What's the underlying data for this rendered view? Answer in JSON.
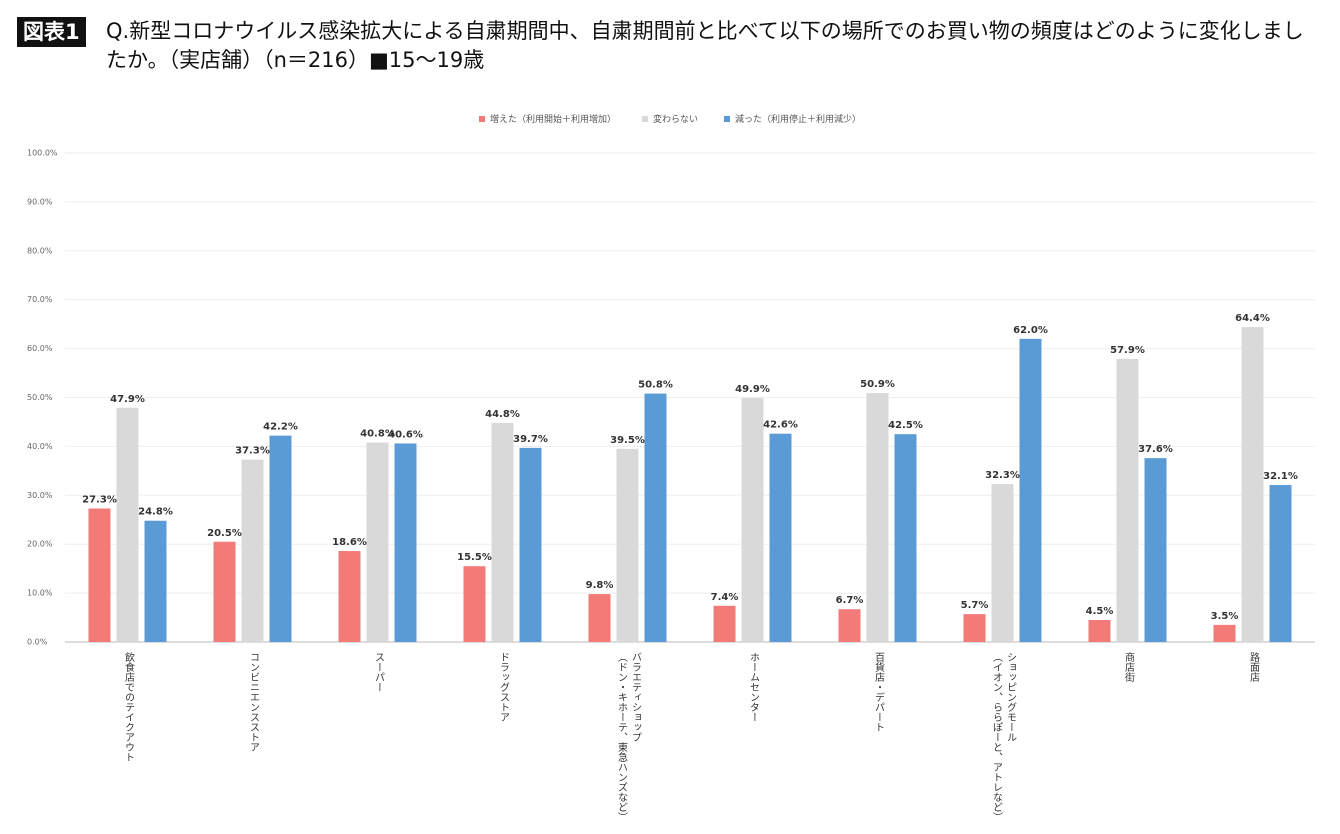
{
  "chart_data": {
    "type": "bar",
    "badge": "図表1",
    "title": "Q.新型コロナウイルス感染拡大による自粛期間中、自粛期間前と比べて以下の場所でのお買い物の頻度はどのように変化しましたか。（実店舗）（n＝216）■15〜19歳",
    "categories": [
      "飲食店でのテイクアウト",
      "コンビニエンスストア",
      "スーパー",
      "ドラッグストア",
      "バラエティショップ\n（ドン・キホーテ、東急ハンズなど）",
      "ホームセンター",
      "百貨店・デパート",
      "ショッピングモール\n（イオン、ららぽーと、アトレなど）",
      "商店街",
      "路面店"
    ],
    "series": [
      {
        "name": "増えた（利用開始＋利用増加）",
        "color": "#f27b78",
        "values": [
          27.3,
          20.5,
          18.6,
          15.5,
          9.8,
          7.4,
          6.7,
          5.7,
          4.5,
          3.5
        ],
        "value_labels": [
          "27.3%",
          "20.5%",
          "18.6%",
          "15.5%",
          "9.8%",
          "7.4%",
          "6.7%",
          "5.7%",
          "4.5%",
          "3.5%"
        ]
      },
      {
        "name": "変わらない",
        "color": "#d9d9d9",
        "values": [
          47.9,
          37.3,
          40.8,
          44.8,
          39.5,
          49.9,
          50.9,
          32.3,
          57.9,
          64.4
        ],
        "value_labels": [
          "47.9%",
          "37.3%",
          "40.8%",
          "44.8%",
          "39.5%",
          "49.9%",
          "50.9%",
          "32.3%",
          "57.9%",
          "64.4%"
        ]
      },
      {
        "name": "減った（利用停止＋利用減少）",
        "color": "#5b9bd5",
        "values": [
          24.8,
          42.2,
          40.6,
          39.7,
          50.8,
          42.6,
          42.5,
          62,
          37.6,
          32.1
        ],
        "value_labels": [
          "24.8%",
          "42.2%",
          "40.6%",
          "39.7%",
          "50.8%",
          "42.6%",
          "42.5%",
          "62.0%",
          "37.6%",
          "32.1%"
        ]
      }
    ],
    "ylim": [
      0,
      100
    ],
    "yticks": [
      {
        "value": 0,
        "label": "0.0%"
      },
      {
        "value": 10,
        "label": "10.0%"
      },
      {
        "value": 20,
        "label": "20.0%"
      },
      {
        "value": 30,
        "label": "30.0%"
      },
      {
        "value": 40,
        "label": "40.0%"
      },
      {
        "value": 50,
        "label": "50.0%"
      },
      {
        "value": 60,
        "label": "60.0%"
      },
      {
        "value": 70,
        "label": "70.0%"
      },
      {
        "value": 80,
        "label": "80.0%"
      },
      {
        "value": 90,
        "label": "90.0%"
      },
      {
        "value": 100,
        "label": "100.0%"
      }
    ],
    "grid": true,
    "legend": "top"
  }
}
